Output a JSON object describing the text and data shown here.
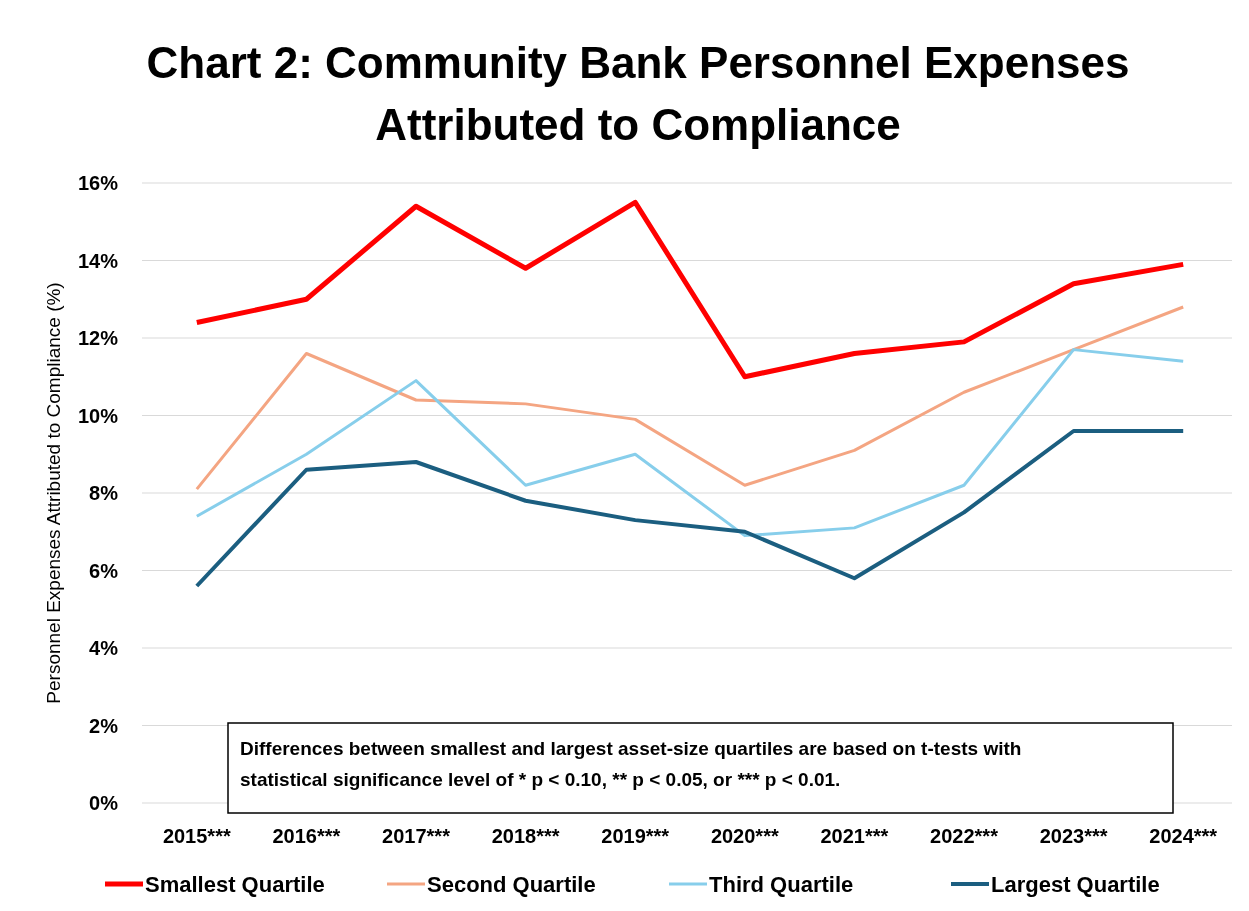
{
  "chart_data": {
    "type": "line",
    "title": "Chart 2: Community Bank Personnel Expenses Attributed to Compliance",
    "ylabel": "Personnel Expenses Attributed to Compliance (%)",
    "categories": [
      "2015***",
      "2016***",
      "2017***",
      "2018***",
      "2019***",
      "2020***",
      "2021***",
      "2022***",
      "2023***",
      "2024***"
    ],
    "series": [
      {
        "name": "Smallest Quartile",
        "color": "#ff0000",
        "values": [
          12.4,
          13.0,
          15.4,
          13.8,
          15.5,
          11.0,
          11.6,
          11.9,
          13.4,
          13.9
        ]
      },
      {
        "name": "Second Quartile",
        "color": "#f4a582",
        "values": [
          8.1,
          11.6,
          10.4,
          10.3,
          9.9,
          8.2,
          9.1,
          10.6,
          11.7,
          12.8
        ]
      },
      {
        "name": "Third Quartile",
        "color": "#87ceeb",
        "values": [
          7.4,
          9.0,
          10.9,
          8.2,
          9.0,
          6.9,
          7.1,
          8.2,
          11.7,
          11.4
        ]
      },
      {
        "name": "Largest Quartile",
        "color": "#1b5e80",
        "values": [
          5.6,
          8.6,
          8.8,
          7.8,
          7.3,
          7.0,
          5.8,
          7.5,
          9.6,
          9.6
        ]
      }
    ],
    "ylim": [
      0,
      16
    ],
    "yticks": [
      {
        "value": 0,
        "label": "0%"
      },
      {
        "value": 2,
        "label": "2%"
      },
      {
        "value": 4,
        "label": "4%"
      },
      {
        "value": 6,
        "label": "6%"
      },
      {
        "value": 8,
        "label": "8%"
      },
      {
        "value": 10,
        "label": "10%"
      },
      {
        "value": 12,
        "label": "12%"
      },
      {
        "value": 14,
        "label": "14%"
      },
      {
        "value": 16,
        "label": "16%"
      }
    ],
    "grid": "y",
    "legend": "bottom",
    "marker": "none",
    "line_style": "solid",
    "annotations": [
      "Differences between smallest and largest asset-size quartiles are based on t-tests with statistical significance level of * p < 0.10, ** p < 0.05, or *** p < 0.01."
    ]
  }
}
